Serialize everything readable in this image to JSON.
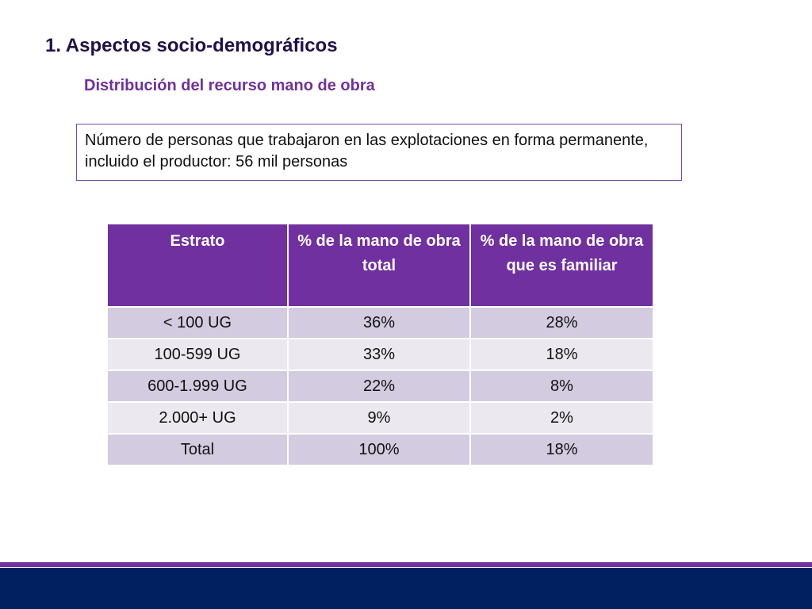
{
  "slide": {
    "title": "1. Aspectos socio-demográficos",
    "subtitle": "Distribución del recurso mano de obra",
    "info_text": "Número de personas que trabajaron en las explotaciones en forma permanente, incluido el productor: 56 mil personas"
  },
  "table": {
    "headers": [
      "Estrato",
      "% de la mano de obra total",
      "% de la mano de obra que es familiar"
    ],
    "rows": [
      [
        "< 100 UG",
        "36%",
        "28%"
      ],
      [
        "100-599 UG",
        "33%",
        "18%"
      ],
      [
        "600-1.999 UG",
        "22%",
        "8%"
      ],
      [
        "2.000+ UG",
        "9%",
        "2%"
      ],
      [
        "Total",
        "100%",
        "18%"
      ]
    ]
  },
  "colors": {
    "title": "#1f1147",
    "accent_purple": "#7030a0",
    "footer_navy": "#002060",
    "row_dark": "#d3cbe0",
    "row_light": "#ebe8f0"
  }
}
